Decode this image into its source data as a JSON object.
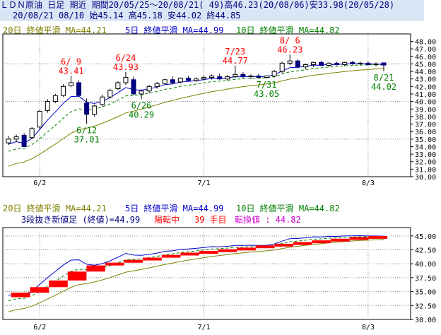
{
  "header": {
    "line1": "ＬＤＮ原油 日足 期近 期間20/05/25～20/08/21( 49)高46.23(20/08/06)安33.98(20/05/28)",
    "line2": "20/08/21 08/10 始45.14 高45.18 安44.02 終44.85"
  },
  "ma_legend": {
    "ma20": "20日 終値平滑 MA=44.21",
    "ma5": "5日 終値平滑 MA=44.99",
    "ma10": "10日 終値平滑 MA=44.82"
  },
  "lower": {
    "line_label": "3段抜き新値足 (終値)=44.99",
    "status": "陽転中",
    "count": "39 手目",
    "reversal": "転換値 : 44.82"
  },
  "colors": {
    "up": "#ffffff",
    "down": "#000080",
    "ma5": "#0000cc",
    "ma10": "#008000",
    "ma20": "#808000",
    "bull": "#ff0000",
    "annot_high": "#ff0000",
    "annot_low": "#008000"
  },
  "chart_data": [
    {
      "type": "candlestick",
      "title": "ＬＤＮ原油 日足 期近",
      "x_labels": [
        "6/2",
        "7/1",
        "8/3"
      ],
      "y_ticks": [
        "48.00",
        "47.00",
        "46.00",
        "45.00",
        "44.00",
        "43.00",
        "42.00",
        "41.00",
        "40.00",
        "39.00",
        "38.00",
        "37.00",
        "36.00",
        "35.00",
        "34.00",
        "33.00",
        "32.00",
        "31.00",
        "30.00"
      ],
      "ylim": [
        30,
        48.8
      ],
      "candles": [
        {
          "o": 34.5,
          "h": 35.4,
          "l": 34.2,
          "c": 35.0
        },
        {
          "o": 35.0,
          "h": 35.6,
          "l": 34.6,
          "c": 35.3
        },
        {
          "o": 35.5,
          "h": 35.8,
          "l": 33.98,
          "c": 34.0
        },
        {
          "o": 35.2,
          "h": 36.6,
          "l": 35.0,
          "c": 36.4
        },
        {
          "o": 36.6,
          "h": 38.9,
          "l": 36.3,
          "c": 38.7
        },
        {
          "o": 38.8,
          "h": 40.3,
          "l": 38.5,
          "c": 40.0
        },
        {
          "o": 40.0,
          "h": 41.0,
          "l": 39.8,
          "c": 40.8
        },
        {
          "o": 40.8,
          "h": 42.3,
          "l": 40.6,
          "c": 42.0
        },
        {
          "o": 42.1,
          "h": 43.41,
          "l": 41.9,
          "c": 42.5
        },
        {
          "o": 42.5,
          "h": 42.8,
          "l": 40.6,
          "c": 40.8
        },
        {
          "o": 39.8,
          "h": 40.4,
          "l": 37.01,
          "c": 38.3
        },
        {
          "o": 38.3,
          "h": 39.6,
          "l": 38.0,
          "c": 39.4
        },
        {
          "o": 39.6,
          "h": 40.9,
          "l": 39.3,
          "c": 40.6
        },
        {
          "o": 40.6,
          "h": 41.7,
          "l": 40.4,
          "c": 41.5
        },
        {
          "o": 41.7,
          "h": 42.7,
          "l": 41.5,
          "c": 42.5
        },
        {
          "o": 42.5,
          "h": 43.93,
          "l": 42.2,
          "c": 43.2
        },
        {
          "o": 42.9,
          "h": 43.3,
          "l": 40.9,
          "c": 41.0
        },
        {
          "o": 41.0,
          "h": 41.6,
          "l": 40.29,
          "c": 41.4
        },
        {
          "o": 41.4,
          "h": 42.2,
          "l": 41.1,
          "c": 42.0
        },
        {
          "o": 42.0,
          "h": 42.6,
          "l": 41.7,
          "c": 42.4
        },
        {
          "o": 42.4,
          "h": 43.0,
          "l": 42.2,
          "c": 42.9
        },
        {
          "o": 42.9,
          "h": 43.3,
          "l": 42.3,
          "c": 42.5
        },
        {
          "o": 42.6,
          "h": 43.2,
          "l": 42.4,
          "c": 43.1
        },
        {
          "o": 43.1,
          "h": 43.4,
          "l": 42.7,
          "c": 42.8
        },
        {
          "o": 42.8,
          "h": 43.2,
          "l": 42.6,
          "c": 43.0
        },
        {
          "o": 43.0,
          "h": 43.5,
          "l": 42.8,
          "c": 43.2
        },
        {
          "o": 43.2,
          "h": 43.6,
          "l": 42.9,
          "c": 43.4
        },
        {
          "o": 43.3,
          "h": 43.7,
          "l": 42.9,
          "c": 43.0
        },
        {
          "o": 43.0,
          "h": 43.5,
          "l": 42.8,
          "c": 43.3
        },
        {
          "o": 43.3,
          "h": 44.77,
          "l": 43.1,
          "c": 43.6
        },
        {
          "o": 43.6,
          "h": 43.9,
          "l": 43.1,
          "c": 43.3
        },
        {
          "o": 43.3,
          "h": 43.6,
          "l": 43.0,
          "c": 43.4
        },
        {
          "o": 43.4,
          "h": 43.7,
          "l": 43.1,
          "c": 43.2
        },
        {
          "o": 43.2,
          "h": 43.5,
          "l": 43.05,
          "c": 43.4
        },
        {
          "o": 43.4,
          "h": 44.2,
          "l": 43.2,
          "c": 44.0
        },
        {
          "o": 44.0,
          "h": 45.3,
          "l": 43.8,
          "c": 45.1
        },
        {
          "o": 45.1,
          "h": 46.23,
          "l": 44.8,
          "c": 45.4
        },
        {
          "o": 45.4,
          "h": 45.6,
          "l": 44.4,
          "c": 44.6
        },
        {
          "o": 44.6,
          "h": 45.0,
          "l": 44.3,
          "c": 44.9
        },
        {
          "o": 44.9,
          "h": 45.3,
          "l": 44.6,
          "c": 45.2
        },
        {
          "o": 45.2,
          "h": 45.4,
          "l": 44.7,
          "c": 44.8
        },
        {
          "o": 44.8,
          "h": 45.2,
          "l": 44.6,
          "c": 45.1
        },
        {
          "o": 45.1,
          "h": 45.3,
          "l": 44.8,
          "c": 44.9
        },
        {
          "o": 44.9,
          "h": 45.3,
          "l": 44.7,
          "c": 45.2
        },
        {
          "o": 45.2,
          "h": 45.4,
          "l": 44.9,
          "c": 45.0
        },
        {
          "o": 45.0,
          "h": 45.3,
          "l": 44.8,
          "c": 45.1
        },
        {
          "o": 45.1,
          "h": 45.3,
          "l": 44.8,
          "c": 44.9
        },
        {
          "o": 44.9,
          "h": 45.2,
          "l": 44.7,
          "c": 45.0
        },
        {
          "o": 45.14,
          "h": 45.18,
          "l": 44.02,
          "c": 44.85
        }
      ],
      "annotations": [
        {
          "label": "6/ 9",
          "value": "43.41",
          "bar": 8,
          "kind": "high"
        },
        {
          "label": "6/24",
          "value": "43.93",
          "bar": 15,
          "kind": "high"
        },
        {
          "label": "7/23",
          "value": "44.77",
          "bar": 29,
          "kind": "high"
        },
        {
          "label": "8/ 6",
          "value": "46.23",
          "bar": 36,
          "kind": "high"
        },
        {
          "label": "6/12",
          "value": "37.01",
          "bar": 10,
          "kind": "low"
        },
        {
          "label": "6/26",
          "value": "40.29",
          "bar": 17,
          "kind": "low"
        },
        {
          "label": "7/31",
          "value": "43.05",
          "bar": 33,
          "kind": "low"
        },
        {
          "label": "8/21",
          "value": "44.02",
          "bar": 48,
          "kind": "low"
        }
      ]
    },
    {
      "type": "new_price_bars",
      "title": "3段抜き新値足 (終値)",
      "x_labels": [
        "6/2",
        "7/1",
        "8/3"
      ],
      "y_ticks": [
        "45.00",
        "42.50",
        "40.00",
        "37.50",
        "35.00",
        "32.50",
        "30.00"
      ],
      "ylim": [
        30,
        46.5
      ],
      "bars": [
        {
          "from": 34.0,
          "to": 34.8,
          "color": "red"
        },
        {
          "from": 34.8,
          "to": 35.8,
          "color": "red"
        },
        {
          "from": 35.8,
          "to": 37.0,
          "color": "red"
        },
        {
          "from": 37.0,
          "to": 38.6,
          "color": "red"
        },
        {
          "from": 38.6,
          "to": 39.7,
          "color": "red"
        },
        {
          "from": 39.7,
          "to": 40.2,
          "color": "red"
        },
        {
          "from": 40.2,
          "to": 40.7,
          "color": "red"
        },
        {
          "from": 40.7,
          "to": 41.1,
          "color": "red"
        },
        {
          "from": 41.1,
          "to": 41.6,
          "color": "red"
        },
        {
          "from": 41.6,
          "to": 42.0,
          "color": "red"
        },
        {
          "from": 42.0,
          "to": 42.3,
          "color": "red"
        },
        {
          "from": 42.3,
          "to": 42.6,
          "color": "red"
        },
        {
          "from": 42.6,
          "to": 42.9,
          "color": "red"
        },
        {
          "from": 42.9,
          "to": 43.3,
          "color": "red"
        },
        {
          "from": 43.3,
          "to": 43.6,
          "color": "red"
        },
        {
          "from": 43.6,
          "to": 43.9,
          "color": "red"
        },
        {
          "from": 43.9,
          "to": 44.2,
          "color": "red"
        },
        {
          "from": 44.2,
          "to": 44.5,
          "color": "red"
        },
        {
          "from": 44.5,
          "to": 44.8,
          "color": "red"
        },
        {
          "from": 44.8,
          "to": 44.99,
          "color": "red"
        }
      ]
    }
  ]
}
